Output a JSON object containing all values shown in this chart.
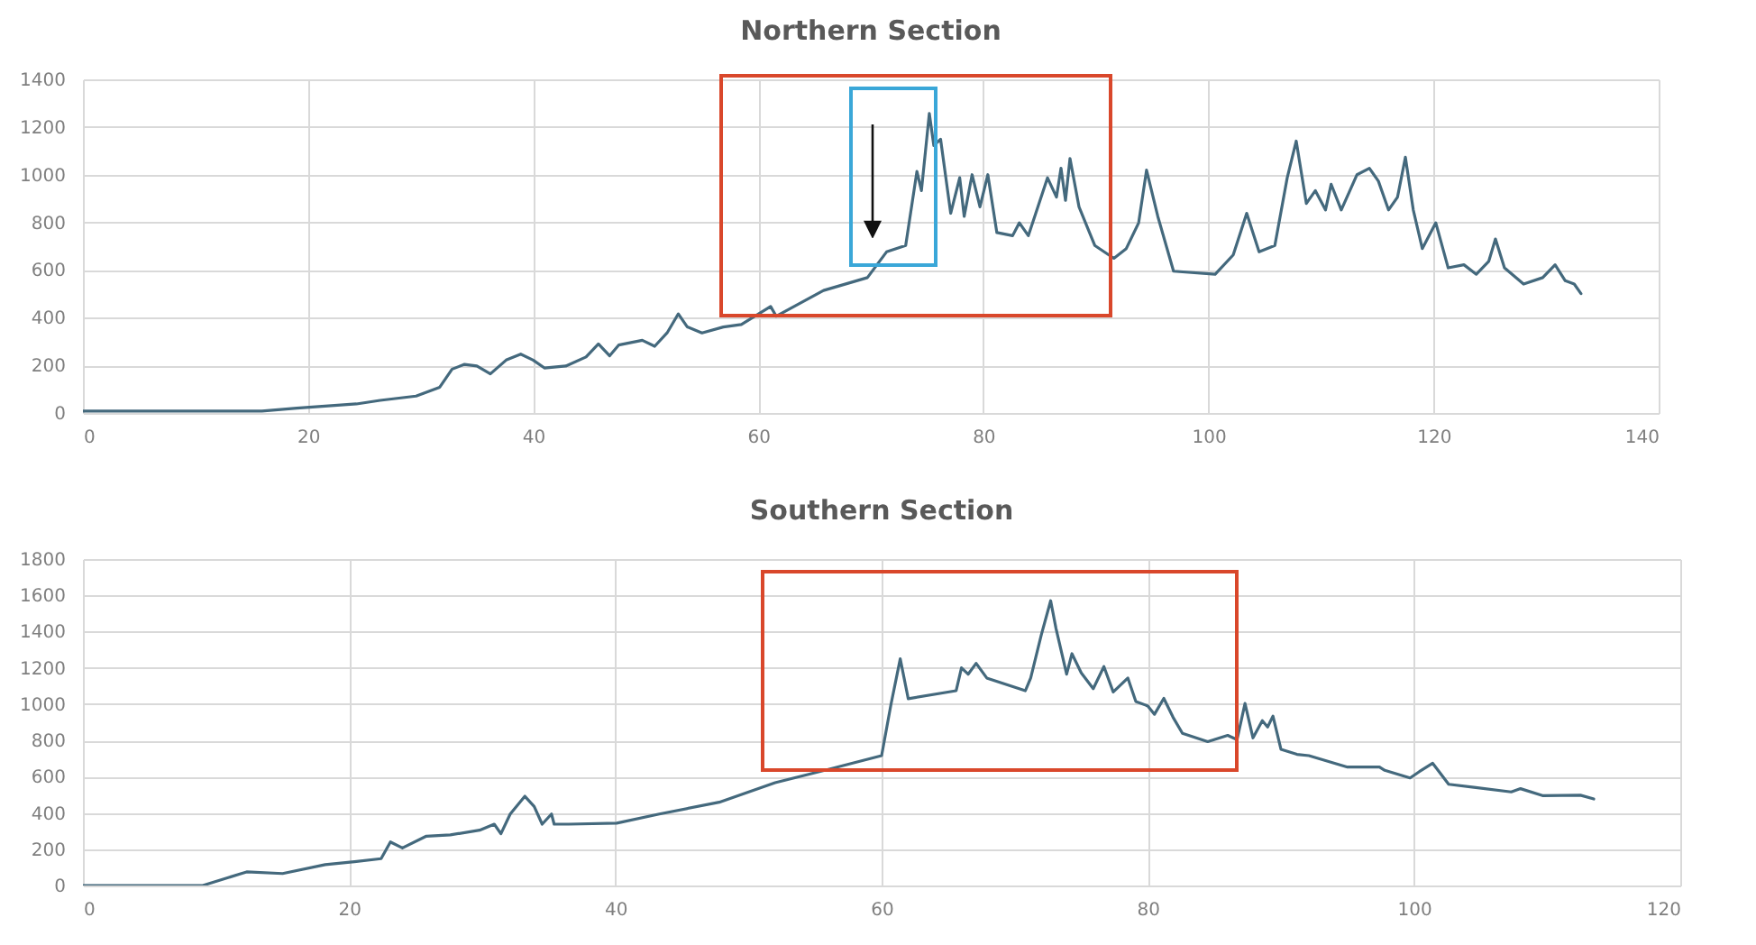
{
  "chart_data": [
    {
      "type": "line",
      "title": "Northern Section",
      "xlim": [
        0,
        140
      ],
      "xticks": [
        0,
        20,
        40,
        60,
        80,
        100,
        120,
        140
      ],
      "ylim": [
        0,
        1400
      ],
      "yticks": [
        0,
        200,
        400,
        600,
        800,
        1000,
        1200,
        1400
      ],
      "grid": true,
      "x": [
        0,
        15.9,
        19,
        24.3,
        26.4,
        29.6,
        31.7,
        32.8,
        33.9,
        35,
        36.2,
        37.6,
        38.9,
        40,
        41,
        42.9,
        44.7,
        45.8,
        46.8,
        47.6,
        49.7,
        50.8,
        51.9,
        52.9,
        53.7,
        55,
        56.9,
        58.5,
        61.1,
        61.6,
        65.8,
        69.7,
        71.4,
        73.1,
        74.1,
        74.5,
        75.2,
        75.6,
        76.2,
        77.1,
        77.9,
        78.3,
        79,
        79.7,
        80.4,
        81.2,
        82.6,
        83.2,
        84,
        85.7,
        86.5,
        86.9,
        87.3,
        87.7,
        88.5,
        89.9,
        91.6,
        92.7,
        93.8,
        94.5,
        95.5,
        96.9,
        100.6,
        102.2,
        103.4,
        104.5,
        105.9,
        107,
        107.8,
        108.7,
        109.5,
        110.4,
        110.9,
        111.8,
        113.2,
        114.3,
        115.1,
        116,
        116.8,
        117.5,
        118.2,
        119,
        120.2,
        121.3,
        122.7,
        123.8,
        124.9,
        125.5,
        126.3,
        128,
        129.7,
        130.8,
        131.7,
        132.5,
        133.1
      ],
      "series": [
        {
          "color": "#44697d",
          "values": [
            8,
            8,
            20,
            38,
            53,
            71,
            108,
            184,
            204,
            197,
            164,
            222,
            247,
            222,
            189,
            197,
            235,
            290,
            240,
            285,
            305,
            280,
            336,
            416,
            361,
            336,
            361,
            371,
            447,
            406,
            514,
            568,
            676,
            703,
            1014,
            933,
            1257,
            1122,
            1149,
            838,
            987,
            825,
            1000,
            865,
            1000,
            757,
            744,
            798,
            744,
            987,
            906,
            1027,
            892,
            1068,
            865,
            703,
            649,
            690,
            798,
            1019,
            825,
            595,
            582,
            663,
            838,
            676,
            703,
            987,
            1141,
            879,
            933,
            852,
            960,
            852,
            1000,
            1027,
            973,
            852,
            906,
            1073,
            852,
            690,
            798,
            609,
            622,
            582,
            636,
            730,
            609,
            541,
            568,
            622,
            555,
            541,
            501
          ]
        }
      ]
    },
    {
      "type": "line",
      "title": "Southern Section",
      "xlim": [
        0,
        120
      ],
      "xticks": [
        0,
        20,
        40,
        60,
        80,
        100,
        120
      ],
      "ylim": [
        0,
        1800
      ],
      "yticks": [
        0,
        200,
        400,
        600,
        800,
        1000,
        1200,
        1400,
        1600,
        1800
      ],
      "grid": true,
      "x": [
        0,
        9,
        11.9,
        12.3,
        15,
        18.2,
        20.4,
        22.4,
        23.1,
        24,
        25.8,
        27.6,
        29.8,
        30.9,
        31.4,
        32.1,
        33.2,
        33.9,
        34.5,
        35.2,
        35.4,
        36.5,
        40.1,
        43.3,
        47.8,
        52,
        56,
        60,
        60.7,
        61.4,
        62,
        65.6,
        66,
        66.5,
        67.1,
        67.9,
        70.8,
        71.2,
        72,
        72.7,
        73.1,
        73.9,
        74.3,
        75,
        75.9,
        76.7,
        77.4,
        78.5,
        79.1,
        80,
        80.5,
        81.2,
        81.9,
        82.6,
        84.5,
        86,
        86.7,
        87.3,
        87.9,
        88.6,
        89,
        89.4,
        90,
        91.2,
        92.1,
        95,
        97.4,
        97.8,
        99.7,
        100.4,
        101.4,
        102.6,
        104.5,
        107.3,
        108,
        109.7,
        112.5,
        113.5
      ],
      "series": [
        {
          "color": "#44697d",
          "values": [
            0,
            0,
            66,
            75,
            66,
            115,
            131,
            148,
            240,
            207,
            272,
            279,
            305,
            338,
            285,
            394,
            492,
            436,
            338,
            394,
            338,
            338,
            344,
            394,
            459,
            567,
            640,
            716,
            997,
            1250,
            1030,
            1074,
            1200,
            1165,
            1225,
            1144,
            1074,
            1144,
            1383,
            1570,
            1418,
            1165,
            1278,
            1172,
            1085,
            1207,
            1067,
            1144,
            1014,
            990,
            944,
            1032,
            927,
            839,
            793,
            828,
            804,
            1004,
            814,
            909,
            874,
            934,
            751,
            723,
            716,
            653,
            653,
            635,
            593,
            628,
            674,
            558,
            541,
            516,
            534,
            495,
            498,
            477
          ]
        }
      ]
    }
  ]
}
